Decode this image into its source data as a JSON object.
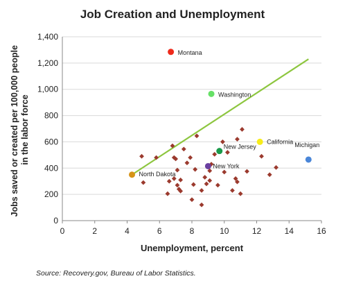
{
  "chart_data": {
    "type": "scatter",
    "title": "Job Creation and Unemployment",
    "xlabel": "Unemployment, percent",
    "ylabel": "Jobs saved or created per 100,000 people in the labor force",
    "ylabel_lines": [
      "Jobs saved or created per 100,000 people",
      "in the labor force"
    ],
    "xlim": [
      0,
      16
    ],
    "ylim": [
      0,
      1400
    ],
    "xticks": [
      0,
      2,
      4,
      6,
      8,
      10,
      12,
      14,
      16
    ],
    "yticks": [
      0,
      200,
      400,
      600,
      800,
      1000,
      1200,
      1400
    ],
    "ytick_labels": [
      "0",
      "200",
      "400",
      "600",
      "800",
      "1,000",
      "1,200",
      "1,400"
    ],
    "grid": "horizontal",
    "trendline": {
      "color": "#8dc63f",
      "x": [
        4.3,
        15.2
      ],
      "y": [
        350,
        1230
      ]
    },
    "highlighted": [
      {
        "label": "Montana",
        "x": 6.7,
        "y": 1285,
        "color": "#ee2a1b"
      },
      {
        "label": "Washington",
        "x": 9.2,
        "y": 965,
        "color": "#66e066"
      },
      {
        "label": "California",
        "x": 12.2,
        "y": 600,
        "color": "#f7ec1a"
      },
      {
        "label": "New Jersey",
        "x": 9.7,
        "y": 530,
        "color": "#1a9a4a"
      },
      {
        "label": "Michigan",
        "x": 15.2,
        "y": 465,
        "color": "#4a86d8"
      },
      {
        "label": "New York",
        "x": 9.0,
        "y": 415,
        "color": "#6a3fa0"
      },
      {
        "label": "North Dakota",
        "x": 4.3,
        "y": 350,
        "color": "#d69317"
      }
    ],
    "other_states_color": "#9b3a2e",
    "other_states": [
      {
        "x": 4.9,
        "y": 490
      },
      {
        "x": 5.0,
        "y": 290
      },
      {
        "x": 5.8,
        "y": 480
      },
      {
        "x": 6.5,
        "y": 205
      },
      {
        "x": 6.6,
        "y": 300
      },
      {
        "x": 6.8,
        "y": 570
      },
      {
        "x": 6.9,
        "y": 320
      },
      {
        "x": 6.9,
        "y": 480
      },
      {
        "x": 7.0,
        "y": 470
      },
      {
        "x": 7.1,
        "y": 385
      },
      {
        "x": 7.1,
        "y": 270
      },
      {
        "x": 7.2,
        "y": 240
      },
      {
        "x": 7.3,
        "y": 225
      },
      {
        "x": 7.3,
        "y": 310
      },
      {
        "x": 7.5,
        "y": 545
      },
      {
        "x": 7.7,
        "y": 440
      },
      {
        "x": 7.9,
        "y": 480
      },
      {
        "x": 8.0,
        "y": 160
      },
      {
        "x": 8.1,
        "y": 275
      },
      {
        "x": 8.2,
        "y": 390
      },
      {
        "x": 8.3,
        "y": 645
      },
      {
        "x": 8.6,
        "y": 120
      },
      {
        "x": 8.6,
        "y": 230
      },
      {
        "x": 8.8,
        "y": 330
      },
      {
        "x": 8.9,
        "y": 280
      },
      {
        "x": 9.1,
        "y": 305
      },
      {
        "x": 9.1,
        "y": 380
      },
      {
        "x": 9.2,
        "y": 430
      },
      {
        "x": 9.4,
        "y": 505
      },
      {
        "x": 9.6,
        "y": 270
      },
      {
        "x": 9.9,
        "y": 600
      },
      {
        "x": 10.0,
        "y": 370
      },
      {
        "x": 10.2,
        "y": 520
      },
      {
        "x": 10.5,
        "y": 230
      },
      {
        "x": 10.7,
        "y": 320
      },
      {
        "x": 10.8,
        "y": 295
      },
      {
        "x": 10.8,
        "y": 620
      },
      {
        "x": 11.0,
        "y": 205
      },
      {
        "x": 11.1,
        "y": 695
      },
      {
        "x": 11.4,
        "y": 375
      },
      {
        "x": 12.3,
        "y": 490
      },
      {
        "x": 12.8,
        "y": 350
      },
      {
        "x": 13.2,
        "y": 405
      }
    ]
  },
  "source": "Source: Recovery.gov, Bureau of Labor Statistics."
}
